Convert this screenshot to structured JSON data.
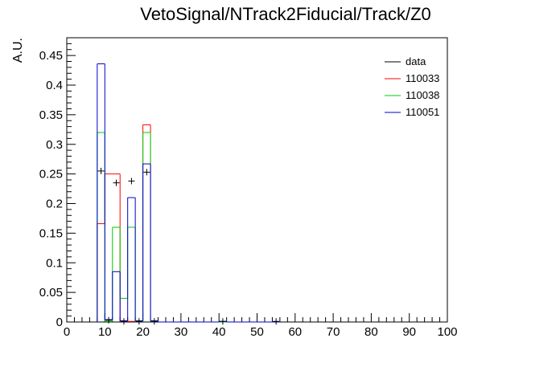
{
  "chart_data": {
    "type": "histogram",
    "title": "VetoSignal/NTrack2Fiducial/Track/Z0",
    "xlabel": "",
    "ylabel": "A.U.",
    "xlim": [
      0,
      100
    ],
    "ylim": [
      0,
      0.48
    ],
    "grid": false,
    "legend_position": "top-right",
    "x_ticks": [
      "0",
      "10",
      "20",
      "30",
      "40",
      "50",
      "60",
      "70",
      "80",
      "90",
      "100"
    ],
    "y_ticks": [
      "0",
      "0.05",
      "0.1",
      "0.15",
      "0.2",
      "0.25",
      "0.3",
      "0.35",
      "0.4",
      "0.45"
    ],
    "bin_edges": [
      8,
      10,
      12,
      14,
      16,
      18,
      20,
      22,
      24,
      26,
      28,
      30,
      32,
      34,
      36,
      38,
      40,
      42,
      44,
      46,
      48,
      50,
      52,
      54,
      56
    ],
    "series": [
      {
        "name": "data",
        "style": "points",
        "color": "#000000",
        "values": [
          0.255,
          0.003,
          0.235,
          0.001,
          0.238,
          0.001,
          0.253,
          0.001,
          0,
          0,
          0,
          0,
          0,
          0,
          0,
          0,
          0.001,
          0,
          0,
          0,
          0,
          0,
          0,
          0.001
        ]
      },
      {
        "name": "110033",
        "style": "step",
        "color": "#ff0000",
        "values": [
          0.166,
          0.25,
          0.25,
          0.001,
          0.001,
          0.001,
          0.333,
          0.001,
          0,
          0,
          0,
          0,
          0,
          0,
          0,
          0,
          0,
          0,
          0,
          0,
          0,
          0,
          0,
          0
        ]
      },
      {
        "name": "110038",
        "style": "step",
        "color": "#00cc00",
        "values": [
          0.32,
          0.001,
          0.16,
          0.04,
          0.16,
          0.001,
          0.32,
          0.001,
          0,
          0,
          0,
          0,
          0,
          0,
          0,
          0,
          0,
          0,
          0,
          0,
          0,
          0,
          0,
          0
        ]
      },
      {
        "name": "110051",
        "style": "step",
        "color": "#0000cc",
        "values": [
          0.436,
          0.004,
          0.085,
          0.002,
          0.21,
          0.002,
          0.267,
          0.002,
          0,
          0,
          0,
          0,
          0,
          0,
          0,
          0,
          0.001,
          0,
          0,
          0,
          0,
          0,
          0,
          0
        ]
      }
    ]
  }
}
